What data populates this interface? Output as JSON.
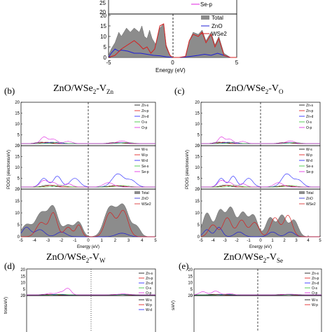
{
  "panels": {
    "a": {
      "label": "",
      "title_main": "",
      "title_sub": "",
      "xlabel": "Energy (eV)",
      "ylabel": "",
      "xlim": [
        -5,
        5
      ],
      "xticks": [
        "-5",
        "0",
        "5"
      ],
      "bottom": {
        "ylim": [
          0,
          20
        ],
        "yticks": [
          "0",
          "5",
          "10",
          "15",
          "20"
        ],
        "legend": [
          "Total",
          "ZnO",
          "WSe2"
        ],
        "total": [
          [
            -5,
            1
          ],
          [
            -4.8,
            4
          ],
          [
            -4.5,
            7
          ],
          [
            -4.2,
            12
          ],
          [
            -4,
            10
          ],
          [
            -3.6,
            14
          ],
          [
            -3.3,
            12
          ],
          [
            -3,
            14
          ],
          [
            -2.6,
            12
          ],
          [
            -2.4,
            15
          ],
          [
            -2.2,
            10
          ],
          [
            -2,
            9
          ],
          [
            -1.8,
            13
          ],
          [
            -1.6,
            9
          ],
          [
            -1.3,
            6
          ],
          [
            -1,
            14
          ],
          [
            -0.7,
            16
          ],
          [
            -0.5,
            6
          ],
          [
            -0.2,
            1
          ],
          [
            0,
            0
          ],
          [
            0.5,
            0
          ],
          [
            1,
            0.5
          ],
          [
            1.3,
            8
          ],
          [
            1.6,
            12
          ],
          [
            2,
            11
          ],
          [
            2.3,
            13
          ],
          [
            2.6,
            8
          ],
          [
            3,
            12
          ],
          [
            3.3,
            6
          ],
          [
            3.6,
            10
          ],
          [
            4,
            2
          ],
          [
            4.5,
            0
          ],
          [
            5,
            0
          ]
        ],
        "zno": [
          [
            -5,
            0
          ],
          [
            -4.8,
            2
          ],
          [
            -4.5,
            4
          ],
          [
            -4.2,
            3
          ],
          [
            -4,
            3.5
          ],
          [
            -3.5,
            3
          ],
          [
            -3,
            2
          ],
          [
            -2.5,
            2
          ],
          [
            -2,
            1.5
          ],
          [
            -1.5,
            1
          ],
          [
            -1,
            0.8
          ],
          [
            -0.5,
            0.3
          ],
          [
            0,
            0
          ],
          [
            0.6,
            0
          ],
          [
            1,
            0.2
          ],
          [
            1.5,
            0.6
          ],
          [
            2,
            1
          ],
          [
            2.5,
            1.5
          ],
          [
            3,
            1
          ],
          [
            3.5,
            2
          ],
          [
            4,
            1
          ],
          [
            4.5,
            0
          ],
          [
            5,
            0
          ]
        ],
        "wse2": [
          [
            -5,
            0
          ],
          [
            -4.5,
            1
          ],
          [
            -4,
            4
          ],
          [
            -3.5,
            6
          ],
          [
            -3,
            8
          ],
          [
            -2.6,
            6
          ],
          [
            -2.3,
            4
          ],
          [
            -2,
            5
          ],
          [
            -1.7,
            2
          ],
          [
            -1.4,
            4
          ],
          [
            -1,
            15
          ],
          [
            -0.7,
            16
          ],
          [
            -0.5,
            5
          ],
          [
            -0.2,
            1
          ],
          [
            0,
            0
          ],
          [
            0.5,
            0
          ],
          [
            1,
            0.5
          ],
          [
            1.3,
            8
          ],
          [
            1.6,
            11
          ],
          [
            2,
            10
          ],
          [
            2.3,
            12
          ],
          [
            2.6,
            7
          ],
          [
            3,
            11
          ],
          [
            3.3,
            5
          ],
          [
            3.6,
            9
          ],
          [
            4,
            1
          ],
          [
            4.5,
            0
          ],
          [
            5,
            0
          ]
        ]
      },
      "middle": {
        "ylim": [
          0,
          25
        ],
        "yticks": [
          "20",
          "25"
        ],
        "legend": [
          "Se-p"
        ]
      }
    },
    "b": {
      "label": "(b)",
      "title_main": "ZnO/WSe",
      "title_sub1": "2",
      "title_mid": "-V",
      "title_sub2": "Zn",
      "xlabel": "Energy (eV)",
      "ylabel": "PDOS (electrons/eV)",
      "xlim": [
        -5,
        5
      ],
      "xticks": [
        "-5",
        "-4",
        "-3",
        "-2",
        "-1",
        "0",
        "1",
        "2",
        "3",
        "4",
        "5"
      ],
      "top_yticks": [
        "0",
        "5",
        "10",
        "15",
        "20"
      ],
      "mid_yticks": [
        "0",
        "5",
        "10",
        "15",
        "20"
      ],
      "bot_yticks": [
        "0",
        "5",
        "10",
        "15",
        "20"
      ],
      "top_legend": [
        "Zn-s",
        "Zn-p",
        "Zn-d",
        "O-s",
        "O-p"
      ],
      "mid_legend": [
        "W-s",
        "W-p",
        "W-d",
        "Se-s",
        "Se-p"
      ],
      "bot_legend": [
        "Total",
        "ZnO",
        "WSe2"
      ]
    },
    "c": {
      "label": "(c)",
      "title_main": "ZnO/WSe",
      "title_sub1": "2",
      "title_mid": "-V",
      "title_sub2": "O",
      "xlabel": "Energy (eV)",
      "ylabel": "PDOS (electrons/eV)",
      "xlim": [
        -5,
        5
      ],
      "xticks": [
        "-5",
        "-4",
        "-3",
        "-2",
        "-1",
        "0",
        "1",
        "2",
        "3",
        "4",
        "5"
      ],
      "top_yticks": [
        "0",
        "5",
        "10",
        "15",
        "20"
      ],
      "mid_yticks": [
        "0",
        "5",
        "10",
        "15",
        "20"
      ],
      "bot_yticks": [
        "0",
        "5",
        "10",
        "15",
        "20"
      ],
      "top_legend": [
        "Zn-s",
        "Zn-p",
        "Zn-d",
        "O-s",
        "O-p"
      ],
      "mid_legend": [
        "W-s",
        "W-p",
        "W-d",
        "Se-s",
        "Se-p"
      ],
      "bot_legend": [
        "Total",
        "ZnO",
        "WSe2"
      ]
    },
    "d": {
      "label": "(d)",
      "title_main": "ZnO/WSe",
      "title_sub1": "2",
      "title_mid": "-V",
      "title_sub2": "W",
      "ylabel": "trons/eV)",
      "yticks": [
        "20",
        "15",
        "10",
        "5",
        "0"
      ],
      "legend": [
        "Zn-s",
        "Zn-p",
        "Zn-d",
        "O-s",
        "O-p"
      ],
      "mid_legend": [
        "W-s",
        "W-p",
        "W-d"
      ]
    },
    "e": {
      "label": "(e)",
      "title_main": "ZnO/WSe",
      "title_sub1": "2",
      "title_mid": "-V",
      "title_sub2": "Se",
      "ylabel": "s/eV)",
      "yticks": [
        "20",
        "15",
        "10",
        "5",
        "0"
      ],
      "legend": [
        "Zn-s",
        "Zn-p",
        "Zn-d",
        "O-s",
        "O-p"
      ],
      "mid_legend": [
        "W-s",
        "W-p"
      ]
    }
  },
  "colors": {
    "total_fill": "#8c8c8c",
    "zno": "#1f1fd6",
    "wse2": "#d61f1f",
    "zn_s": "#000000",
    "zn_p": "#e01010",
    "zn_d": "#1a1aff",
    "o_s": "#2fc02f",
    "o_p": "#e020e0",
    "w_s": "#000000",
    "w_p": "#e01010",
    "w_d": "#1a1aff",
    "se_s": "#2fc02f",
    "se_p": "#e020e0"
  },
  "chart_data": [
    {
      "type": "area",
      "panel": "a",
      "xlabel": "Energy (eV)",
      "xlim": [
        -5,
        5
      ],
      "ylim": [
        0,
        20
      ],
      "series": [
        {
          "name": "Total",
          "x": [
            -5,
            -4.8,
            -4.5,
            -4.2,
            -4,
            -3.6,
            -3.3,
            -3,
            -2.6,
            -2.4,
            -2.2,
            -2,
            -1.8,
            -1.6,
            -1.3,
            -1,
            -0.7,
            -0.5,
            -0.2,
            0,
            0.5,
            1,
            1.3,
            1.6,
            2,
            2.3,
            2.6,
            3,
            3.3,
            3.6,
            4,
            4.5,
            5
          ],
          "values": [
            1,
            4,
            7,
            12,
            10,
            14,
            12,
            14,
            12,
            15,
            10,
            9,
            13,
            9,
            6,
            14,
            16,
            6,
            1,
            0,
            0,
            0.5,
            8,
            12,
            11,
            13,
            8,
            12,
            6,
            10,
            2,
            0,
            0
          ]
        },
        {
          "name": "ZnO",
          "x": [
            -5,
            -4.8,
            -4.5,
            -4.2,
            -4,
            -3.5,
            -3,
            -2.5,
            -2,
            -1.5,
            -1,
            -0.5,
            0,
            0.6,
            1,
            1.5,
            2,
            2.5,
            3,
            3.5,
            4,
            4.5,
            5
          ],
          "values": [
            0,
            2,
            4,
            3,
            3.5,
            3,
            2,
            2,
            1.5,
            1,
            0.8,
            0.3,
            0,
            0,
            0.2,
            0.6,
            1,
            1.5,
            1,
            2,
            1,
            0,
            0
          ]
        },
        {
          "name": "WSe2",
          "x": [
            -5,
            -4.5,
            -4,
            -3.5,
            -3,
            -2.6,
            -2.3,
            -2,
            -1.7,
            -1.4,
            -1,
            -0.7,
            -0.5,
            -0.2,
            0,
            0.5,
            1,
            1.3,
            1.6,
            2,
            2.3,
            2.6,
            3,
            3.3,
            3.6,
            4,
            4.5,
            5
          ],
          "values": [
            0,
            1,
            4,
            6,
            8,
            6,
            4,
            5,
            2,
            4,
            15,
            16,
            5,
            1,
            0,
            0,
            0.5,
            8,
            11,
            10,
            12,
            7,
            11,
            5,
            9,
            1,
            0,
            0
          ]
        }
      ]
    }
  ]
}
